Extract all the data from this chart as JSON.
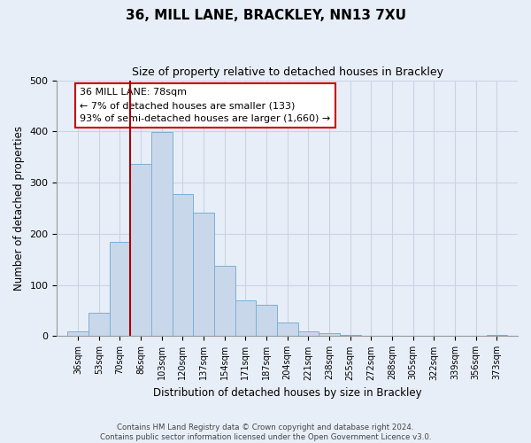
{
  "title": "36, MILL LANE, BRACKLEY, NN13 7XU",
  "subtitle": "Size of property relative to detached houses in Brackley",
  "xlabel": "Distribution of detached houses by size in Brackley",
  "ylabel": "Number of detached properties",
  "bin_labels": [
    "36sqm",
    "53sqm",
    "70sqm",
    "86sqm",
    "103sqm",
    "120sqm",
    "137sqm",
    "154sqm",
    "171sqm",
    "187sqm",
    "204sqm",
    "221sqm",
    "238sqm",
    "255sqm",
    "272sqm",
    "288sqm",
    "305sqm",
    "322sqm",
    "339sqm",
    "356sqm",
    "373sqm"
  ],
  "bar_values": [
    10,
    46,
    185,
    337,
    398,
    277,
    242,
    137,
    70,
    62,
    26,
    10,
    6,
    2,
    1,
    1,
    0,
    0,
    0,
    0,
    3
  ],
  "bar_color": "#c8d8ea",
  "bar_edge_color": "#7bafd4",
  "annotation_title": "36 MILL LANE: 78sqm",
  "annotation_line1": "← 7% of detached houses are smaller (133)",
  "annotation_line2": "93% of semi-detached houses are larger (1,660) →",
  "annotation_box_color": "#ffffff",
  "annotation_box_edge": "#cc0000",
  "vline_color": "#aa0000",
  "ylim": [
    0,
    500
  ],
  "footer_line1": "Contains HM Land Registry data © Crown copyright and database right 2024.",
  "footer_line2": "Contains public sector information licensed under the Open Government Licence v3.0.",
  "background_color": "#e8eef8",
  "plot_bg_color": "#e8eef8",
  "grid_color": "#c8d4e4"
}
